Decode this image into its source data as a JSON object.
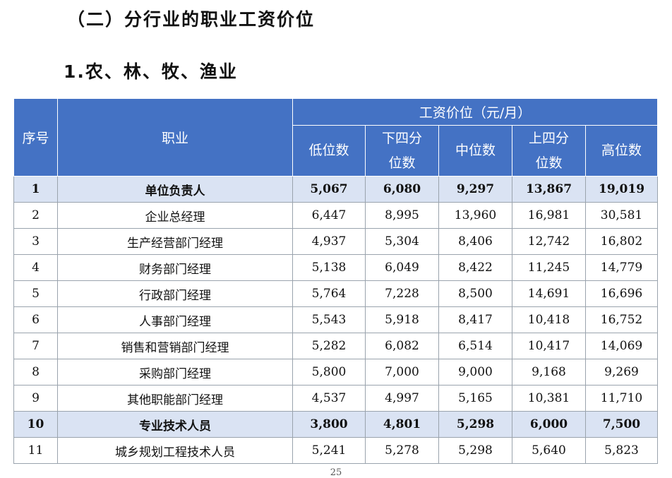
{
  "section_title": "（二）分行业的职业工资价位",
  "subsection_title": "1.农、林、牧、渔业",
  "table": {
    "col_seq": "序号",
    "col_job": "职业",
    "group_header": "工资价位（元/月）",
    "sub_headers": [
      "低位数",
      "下四分\n位数",
      "中位数",
      "上四分\n位数",
      "高位数"
    ],
    "rows": [
      {
        "seq": "1",
        "job": "单位负责人",
        "values": [
          "5,067",
          "6,080",
          "9,297",
          "13,867",
          "19,019"
        ],
        "highlight": true
      },
      {
        "seq": "2",
        "job": "企业总经理",
        "values": [
          "6,447",
          "8,995",
          "13,960",
          "16,981",
          "30,581"
        ],
        "highlight": false
      },
      {
        "seq": "3",
        "job": "生产经营部门经理",
        "values": [
          "4,937",
          "5,304",
          "8,406",
          "12,742",
          "16,802"
        ],
        "highlight": false
      },
      {
        "seq": "4",
        "job": "财务部门经理",
        "values": [
          "5,138",
          "6,049",
          "8,422",
          "11,245",
          "14,779"
        ],
        "highlight": false
      },
      {
        "seq": "5",
        "job": "行政部门经理",
        "values": [
          "5,764",
          "7,228",
          "8,500",
          "14,691",
          "16,696"
        ],
        "highlight": false
      },
      {
        "seq": "6",
        "job": "人事部门经理",
        "values": [
          "5,543",
          "5,918",
          "8,417",
          "10,418",
          "16,752"
        ],
        "highlight": false
      },
      {
        "seq": "7",
        "job": "销售和营销部门经理",
        "values": [
          "5,282",
          "6,082",
          "6,514",
          "10,417",
          "14,069"
        ],
        "highlight": false
      },
      {
        "seq": "8",
        "job": "采购部门经理",
        "values": [
          "5,800",
          "7,000",
          "9,000",
          "9,168",
          "9,269"
        ],
        "highlight": false
      },
      {
        "seq": "9",
        "job": "其他职能部门经理",
        "values": [
          "4,537",
          "4,997",
          "5,165",
          "10,381",
          "11,710"
        ],
        "highlight": false
      },
      {
        "seq": "10",
        "job": "专业技术人员",
        "values": [
          "3,800",
          "4,801",
          "5,298",
          "6,000",
          "7,500"
        ],
        "highlight": true
      },
      {
        "seq": "11",
        "job": "城乡规划工程技术人员",
        "values": [
          "5,241",
          "5,278",
          "5,298",
          "5,640",
          "5,823"
        ],
        "highlight": false
      }
    ]
  },
  "page_number": "25",
  "colors": {
    "header_bg": "#4472c4",
    "highlight_row_bg": "#dae3f3"
  }
}
